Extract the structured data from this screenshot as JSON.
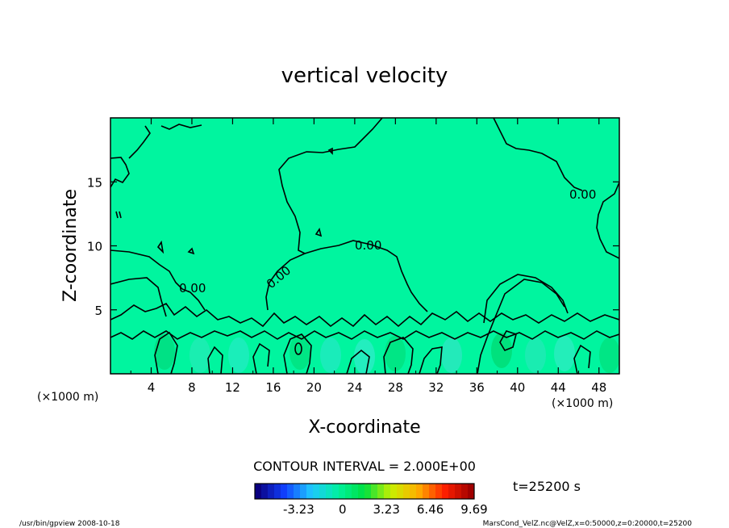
{
  "chart_data": {
    "type": "heatmap",
    "title": "vertical velocity",
    "xlabel": "X-coordinate",
    "ylabel": "Z-coordinate",
    "x_unit": "(×1000 m)",
    "y_unit": "(×1000 m)",
    "xlim": [
      0,
      50
    ],
    "ylim": [
      0,
      20
    ],
    "x_ticks": [
      4,
      8,
      12,
      16,
      20,
      24,
      28,
      32,
      36,
      40,
      44,
      48
    ],
    "y_ticks": [
      5,
      10,
      15
    ],
    "contour_interval_text": "CONTOUR INTERVAL = 2.000E+00",
    "contour_labels": [
      "0.00",
      "0.00",
      "0.00",
      "0.00"
    ],
    "time_text": "t=25200 s",
    "colorbar": {
      "ticks": [
        "-3.23",
        "0",
        "3.23",
        "6.46",
        "9.69"
      ],
      "range": [
        -6.46,
        9.69
      ],
      "colors": [
        "#0a0080",
        "#1040ff",
        "#20c8ff",
        "#00f0a0",
        "#00e040",
        "#c8f000",
        "#ffb000",
        "#ff2000",
        "#a00000"
      ]
    },
    "background_color": "#00f59f",
    "footer_left": "/usr/bin/gpview 2008-10-18",
    "footer_right": "MarsCond_VelZ.nc@VelZ,x=0:50000,z=0:20000,t=25200"
  }
}
